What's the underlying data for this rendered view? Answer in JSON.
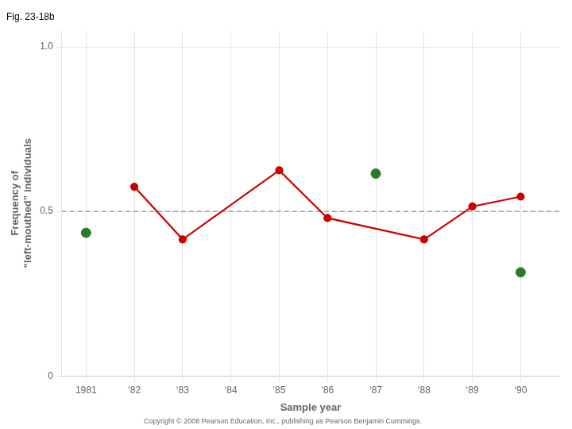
{
  "chart_data": {
    "type": "line",
    "title": "Fig. 23-18b",
    "x_label": "Sample year",
    "y_label": "Frequency of\n“left-mouthed” individuals",
    "series": [
      {
        "type": "line",
        "color": "#cc0000",
        "marker": "circle",
        "x": [
          1982,
          1983,
          1985,
          1986,
          1988,
          1989,
          1990
        ],
        "values": [
          0.575,
          0.415,
          0.625,
          0.48,
          0.415,
          0.515,
          0.545
        ]
      },
      {
        "type": "scatter",
        "color": "#2a7a2a",
        "marker": "circle",
        "x": [
          1981,
          1987,
          1990
        ],
        "values": [
          0.435,
          0.615,
          0.315
        ]
      }
    ],
    "annotations": [
      {
        "y": 0.5,
        "line_style": "dashed",
        "color": "#888888"
      },
      {
        "text": "Copyright © 2008 Pearson Education, Inc., publishing as Pearson Benjamin Cummings."
      }
    ],
    "xlim": [
      1980.5,
      1990.8
    ],
    "ylim": [
      0,
      1.05
    ],
    "xticks": [
      1981,
      {
        "value": 1982,
        "label": "‘82"
      },
      {
        "value": 1983,
        "label": "‘83"
      },
      {
        "value": 1984,
        "label": "‘84"
      },
      {
        "value": 1985,
        "label": "‘85"
      },
      {
        "value": 1986,
        "label": "‘86"
      },
      {
        "value": 1987,
        "label": "‘87"
      },
      {
        "value": 1988,
        "label": "‘88"
      },
      {
        "value": 1989,
        "label": "‘89"
      },
      {
        "value": 1990,
        "label": "‘90"
      }
    ],
    "yticks": [
      0,
      0.5,
      {
        "value": 1,
        "label": "1.0"
      }
    ],
    "grid": true
  }
}
